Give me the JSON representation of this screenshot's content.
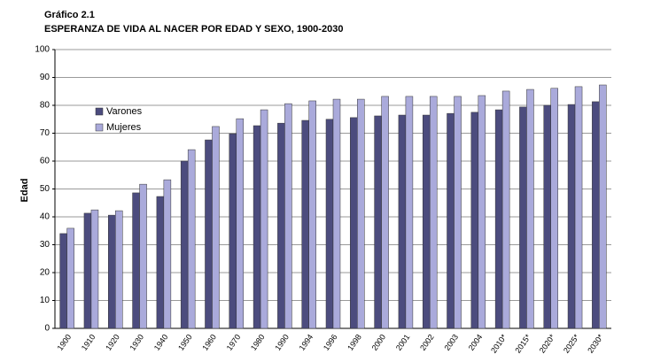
{
  "chart_data": {
    "type": "bar",
    "title": "Gráfico 2.1",
    "subtitle": "ESPERANZA DE VIDA AL NACER POR EDAD Y SEXO, 1900-2030",
    "y_label": "Edad",
    "categories": [
      "1900",
      "1910",
      "1920",
      "1930",
      "1940",
      "1950",
      "1960",
      "1970",
      "1980",
      "1990",
      "1994",
      "1996",
      "1998",
      "2000",
      "2001",
      "2002",
      "2003",
      "2004",
      "2010*",
      "2015*",
      "2020*",
      "2025*",
      "2030*"
    ],
    "series": [
      {
        "name": "Varones",
        "color": "#4c4c7e",
        "values": [
          34.0,
          41.3,
          40.6,
          48.6,
          47.3,
          60.0,
          67.6,
          69.8,
          72.7,
          73.6,
          74.6,
          75.0,
          75.6,
          76.2,
          76.5,
          76.5,
          77.1,
          77.5,
          78.4,
          79.4,
          80.0,
          80.3,
          81.3
        ]
      },
      {
        "name": "Mujeres",
        "color": "#aaaadb",
        "values": [
          35.9,
          42.5,
          42.2,
          51.7,
          53.3,
          64.1,
          72.4,
          75.2,
          78.4,
          80.6,
          81.6,
          82.2,
          82.2,
          83.2,
          83.2,
          83.2,
          83.2,
          83.5,
          85.1,
          85.7,
          86.1,
          86.7,
          87.3
        ]
      }
    ],
    "ylim": [
      0,
      100
    ],
    "yticks": [
      0,
      10,
      20,
      30,
      40,
      50,
      60,
      70,
      80,
      90,
      100
    ],
    "grid": true,
    "legend": "upper left"
  }
}
